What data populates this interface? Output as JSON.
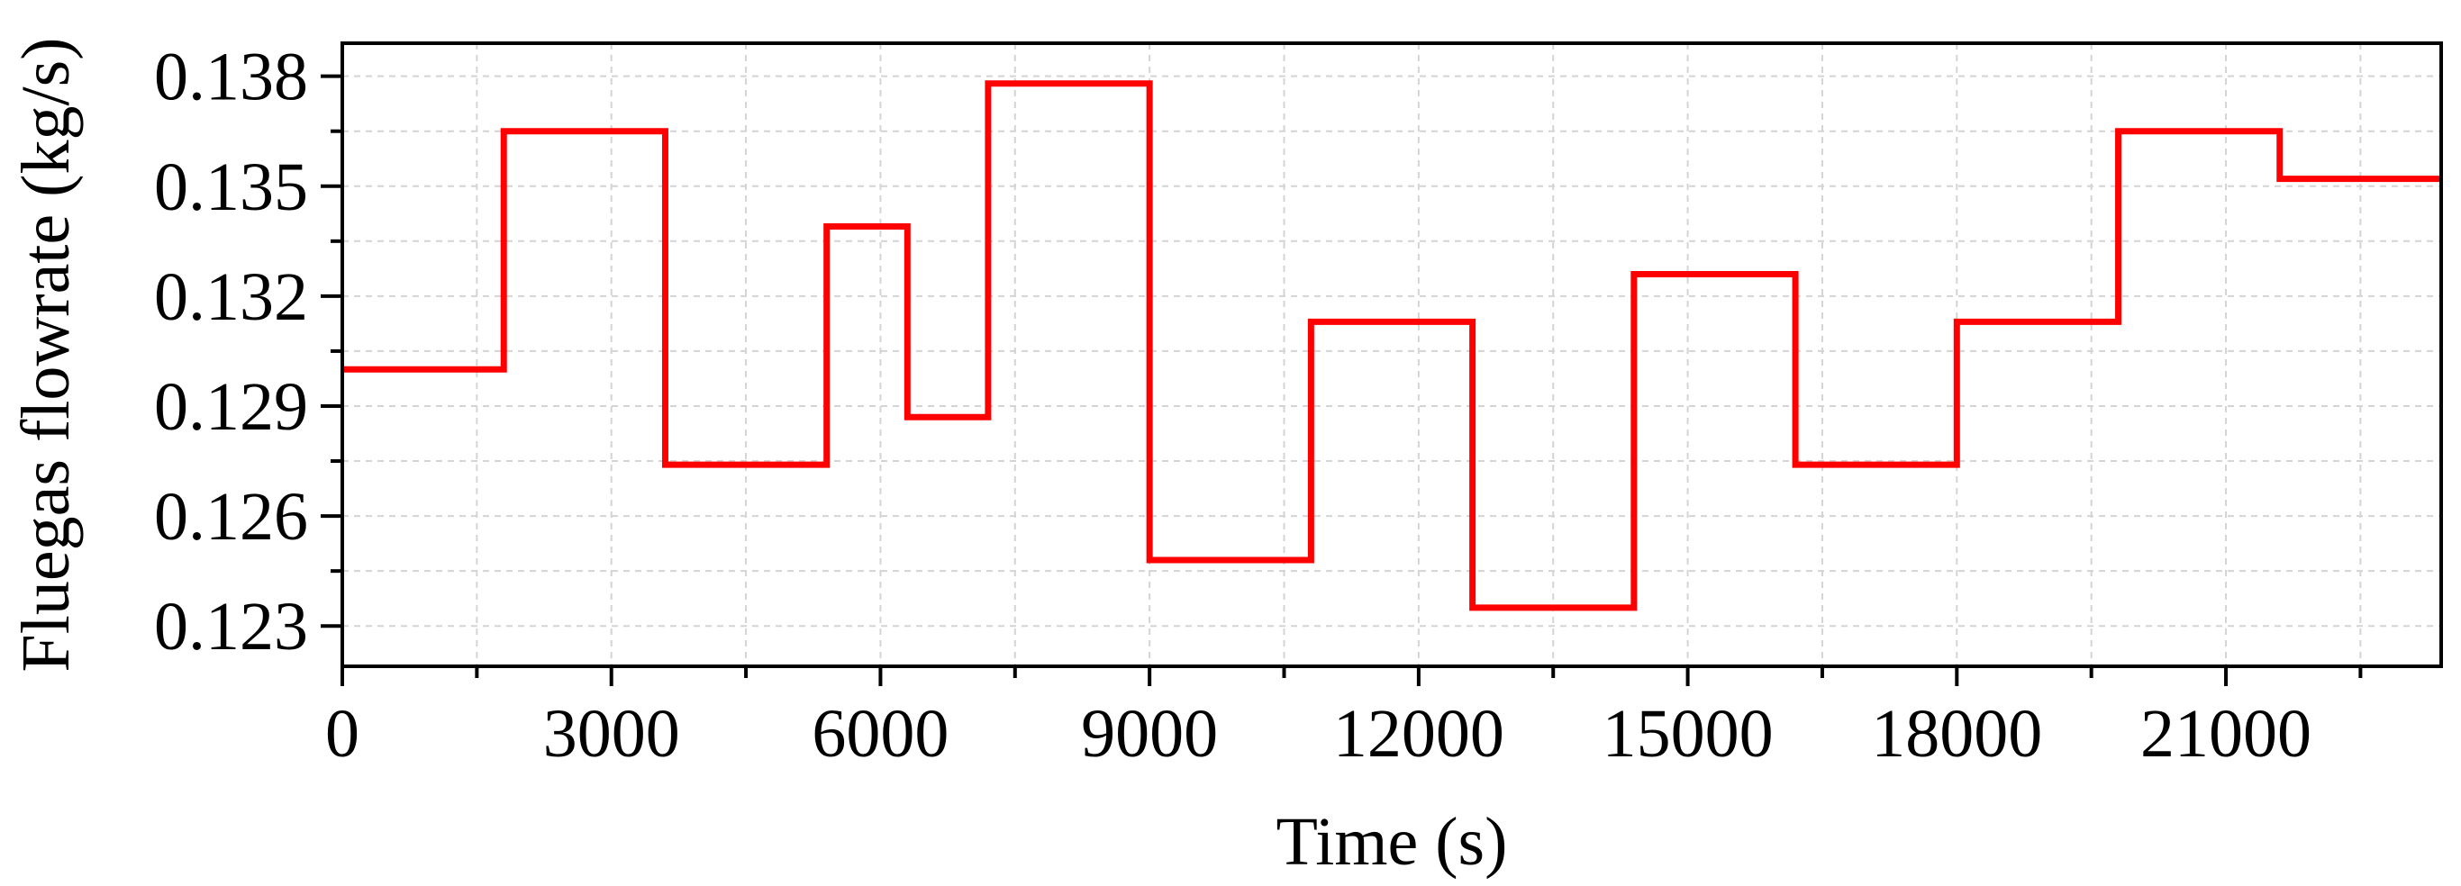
{
  "chart_data": {
    "type": "line",
    "step": true,
    "xlabel": "Time (s)",
    "ylabel": "Fluegas flowrate (kg/s)",
    "xlim": [
      0,
      23400
    ],
    "ylim": [
      0.1219,
      0.1389
    ],
    "xticks": [
      0,
      3000,
      6000,
      9000,
      12000,
      15000,
      18000,
      21000
    ],
    "xtick_labels": [
      "0",
      "3000",
      "6000",
      "9000",
      "12000",
      "15000",
      "18000",
      "21000"
    ],
    "yticks": [
      0.123,
      0.126,
      0.129,
      0.132,
      0.135,
      0.138
    ],
    "ytick_labels": [
      "0.123",
      "0.126",
      "0.129",
      "0.132",
      "0.135",
      "0.138"
    ],
    "grid": true,
    "series": [
      {
        "color": "#ff0000",
        "x": [
          0,
          1800,
          3600,
          5400,
          6300,
          7200,
          9000,
          10800,
          12600,
          14400,
          16200,
          18000,
          19800,
          21600,
          23400
        ],
        "y": [
          0.13,
          0.1365,
          0.1274,
          0.1339,
          0.1287,
          0.1378,
          0.1248,
          0.1313,
          0.1235,
          0.1326,
          0.1274,
          0.1313,
          0.1365,
          0.1352,
          0.1352
        ]
      }
    ]
  }
}
